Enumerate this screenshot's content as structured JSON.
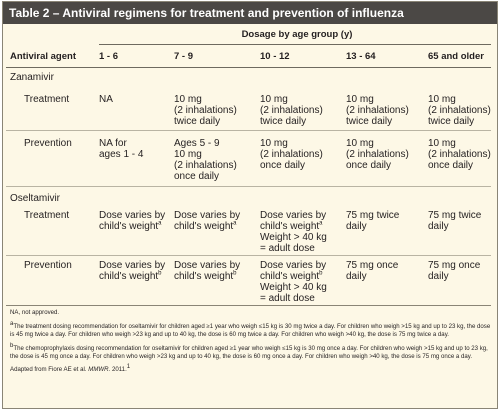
{
  "table": {
    "title": "Table 2 – Antiviral regimens for treatment and prevention of influenza",
    "group_header": "Dosage by age group (y)",
    "columns": [
      "Antiviral agent",
      "1 - 6",
      "7 - 9",
      "10 - 12",
      "13 - 64",
      "65 and older"
    ],
    "zanamivir": {
      "name": "Zanamivir",
      "treatment": {
        "label": "Treatment",
        "c1": [
          "NA"
        ],
        "c2": [
          "10 mg",
          "(2 inhalations)",
          "twice daily"
        ],
        "c3": [
          "10 mg",
          "(2 inhalations)",
          "twice daily"
        ],
        "c4": [
          "10 mg",
          "(2 inhalations)",
          "twice daily"
        ],
        "c5": [
          "10 mg",
          "(2 inhalations)",
          "twice daily"
        ]
      },
      "prevention": {
        "label": "Prevention",
        "c1": [
          "NA for",
          "ages 1 - 4"
        ],
        "c2": [
          "Ages 5 - 9",
          "10 mg",
          "(2 inhalations)",
          "once daily"
        ],
        "c3": [
          "10 mg",
          "(2 inhalations)",
          "once daily"
        ],
        "c4": [
          "10 mg",
          "(2 inhalations)",
          "once daily"
        ],
        "c5": [
          "10 mg",
          "(2 inhalations)",
          "once daily"
        ]
      }
    },
    "oseltamivir": {
      "name": "Oseltamivir",
      "treatment": {
        "label": "Treatment",
        "c1": [
          "Dose varies by",
          "child's weight"
        ],
        "c2": [
          "Dose varies by",
          "child's weight"
        ],
        "c3": [
          "Dose varies by",
          "child's weight",
          "Weight > 40 kg",
          "= adult dose"
        ],
        "c4": [
          "75 mg twice",
          "daily"
        ],
        "c5": [
          "75 mg twice",
          "daily"
        ],
        "mark": "a"
      },
      "prevention": {
        "label": "Prevention",
        "c1": [
          "Dose varies by",
          "child's weight"
        ],
        "c2": [
          "Dose varies by",
          "child's weight"
        ],
        "c3": [
          "Dose varies by",
          "child's weight",
          "Weight > 40 kg",
          "= adult dose"
        ],
        "c4": [
          "75 mg once",
          "daily"
        ],
        "c5": [
          "75 mg once",
          "daily"
        ],
        "mark": "b"
      }
    }
  },
  "footnotes": {
    "na": "NA, not approved.",
    "a_mark": "a",
    "a": "The treatment dosing recommendation for oseltamivir for children aged ≥1 year who weigh ≤15 kg is 30 mg twice a day. For children who weigh >15 kg and up to 23 kg, the dose is 45 mg twice a day. For children who weigh >23 kg and up to 40 kg, the dose is 60 mg twice a day. For children who weigh >40 kg, the dose is 75 mg twice a day.",
    "b_mark": "b",
    "b": "The chemoprophylaxis dosing recommendation for oseltamivir for children aged ≥1 year who weigh ≤15 kg is 30 mg once a day. For children who weigh >15 kg and up to 23 kg, the dose is 45 mg once a day. For children who weigh >23 kg and up to 40 kg, the dose is 60 mg once a day. For children who weigh >40 kg, the dose is 75 mg once a day.",
    "source_prefix": "Adapted from Fiore AE et al.",
    "source_journal": "MMWR.",
    "source_suffix": "2011.",
    "source_mark": "1"
  }
}
